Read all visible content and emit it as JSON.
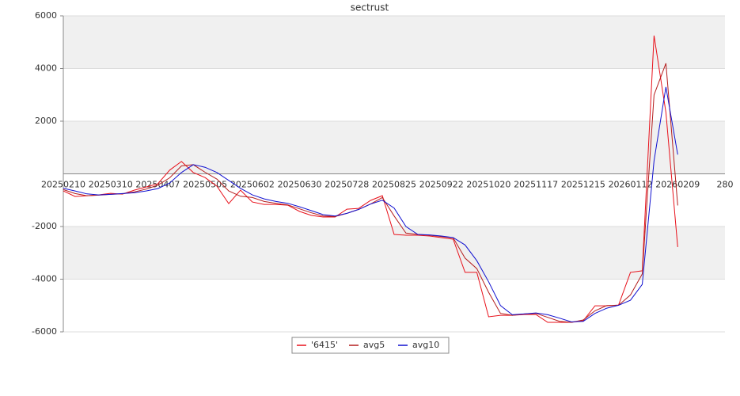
{
  "chart_data": {
    "type": "line",
    "title": "sectrust",
    "categories": [
      "20250210",
      null,
      null,
      null,
      "20250310",
      null,
      null,
      null,
      "20250407",
      null,
      null,
      null,
      "20250505",
      null,
      null,
      null,
      "20250602",
      null,
      null,
      null,
      "20250630",
      null,
      null,
      null,
      "20250728",
      null,
      null,
      null,
      "20250825",
      null,
      null,
      null,
      "20250922",
      null,
      null,
      null,
      "20251020",
      null,
      null,
      null,
      "20251117",
      null,
      null,
      null,
      "20251215",
      null,
      null,
      null,
      "20260112",
      null,
      null,
      null,
      "20260209",
      null,
      null,
      null,
      "280"
    ],
    "series": [
      {
        "name": "'6415'",
        "color": "#e8101a",
        "values": [
          -650,
          -860,
          -830,
          -800,
          -740,
          -770,
          -620,
          -500,
          -380,
          140,
          470,
          50,
          -140,
          -470,
          -1130,
          -620,
          -1070,
          -1160,
          -1160,
          -1190,
          -1430,
          -1580,
          -1640,
          -1640,
          -1340,
          -1310,
          -1010,
          -830,
          -2300,
          -2330,
          -2330,
          -2360,
          -2420,
          -2480,
          -3740,
          -3740,
          -5430,
          -5370,
          -5370,
          -5340,
          -5340,
          -5640,
          -5640,
          -5640,
          -5580,
          -5010,
          -5010,
          -4980,
          -3740,
          -3680,
          5250,
          2330,
          -2780,
          null,
          null,
          null,
          null
        ]
      },
      {
        "name": "avg5",
        "color": "#b41e1e",
        "values": [
          -600,
          -750,
          -830,
          -810,
          -780,
          -760,
          -690,
          -580,
          -430,
          -150,
          300,
          350,
          60,
          -200,
          -650,
          -850,
          -900,
          -1050,
          -1120,
          -1180,
          -1330,
          -1480,
          -1600,
          -1620,
          -1500,
          -1350,
          -1150,
          -900,
          -1600,
          -2250,
          -2300,
          -2330,
          -2380,
          -2430,
          -3200,
          -3600,
          -4500,
          -5300,
          -5370,
          -5320,
          -5300,
          -5450,
          -5600,
          -5640,
          -5550,
          -5200,
          -5000,
          -4990,
          -4600,
          -3800,
          3000,
          4200,
          -1200,
          null,
          null,
          null,
          null
        ]
      },
      {
        "name": "avg10",
        "color": "#1010d0",
        "values": [
          -550,
          -650,
          -760,
          -800,
          -780,
          -750,
          -720,
          -650,
          -560,
          -350,
          50,
          350,
          250,
          50,
          -250,
          -550,
          -800,
          -950,
          -1050,
          -1120,
          -1250,
          -1400,
          -1550,
          -1600,
          -1500,
          -1350,
          -1150,
          -1000,
          -1300,
          -2000,
          -2300,
          -2320,
          -2360,
          -2420,
          -2700,
          -3300,
          -4100,
          -5000,
          -5350,
          -5320,
          -5280,
          -5350,
          -5480,
          -5620,
          -5600,
          -5300,
          -5100,
          -4990,
          -4800,
          -4200,
          500,
          3300,
          730,
          null,
          null,
          null,
          null
        ]
      }
    ],
    "ylim": [
      -6000,
      6000
    ],
    "yticks": [
      -6000,
      -4000,
      -2000,
      2000,
      4000,
      6000
    ],
    "grid": true
  }
}
